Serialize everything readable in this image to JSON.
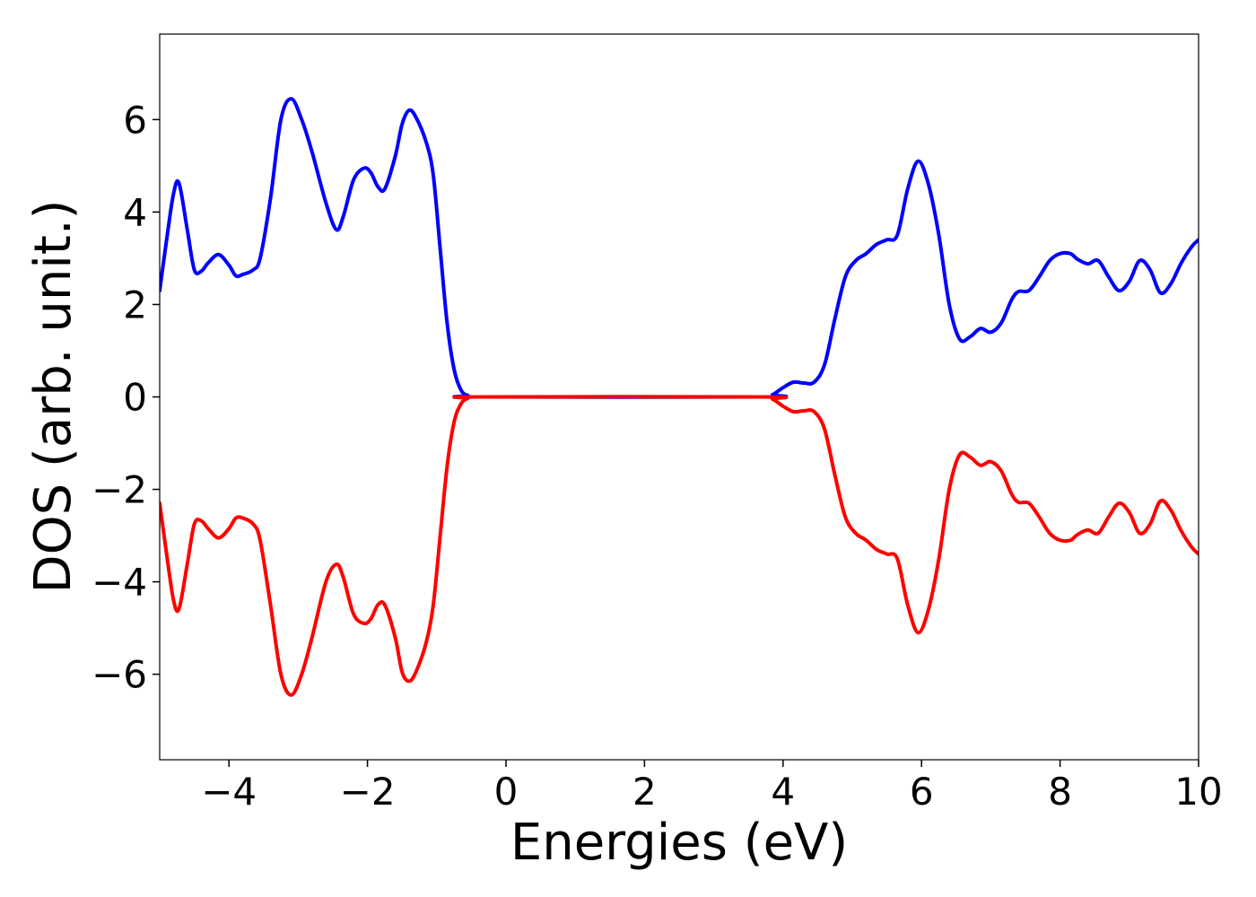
{
  "chart_data": {
    "type": "line",
    "title": "",
    "xlabel": "Energies (eV)",
    "ylabel": "DOS (arb. unit.)",
    "xlim": [
      -5,
      10
    ],
    "ylim": [
      -7.85,
      7.85
    ],
    "xticks": [
      -4,
      -2,
      0,
      2,
      4,
      6,
      8,
      10
    ],
    "xtick_labels": [
      "−4",
      "−2",
      "0",
      "2",
      "4",
      "6",
      "8",
      "10"
    ],
    "yticks": [
      -6,
      -4,
      -2,
      0,
      2,
      4,
      6
    ],
    "ytick_labels": [
      "−6",
      "−4",
      "−2",
      "0",
      "2",
      "4",
      "6"
    ],
    "grid": false,
    "legend": "none",
    "series": [
      {
        "color": "#0000ff",
        "points": [
          [
            -5.0,
            2.3
          ],
          [
            -4.9,
            3.4
          ],
          [
            -4.8,
            4.4
          ],
          [
            -4.72,
            4.62
          ],
          [
            -4.6,
            3.6
          ],
          [
            -4.5,
            2.75
          ],
          [
            -4.4,
            2.72
          ],
          [
            -4.3,
            2.9
          ],
          [
            -4.15,
            3.08
          ],
          [
            -4.0,
            2.85
          ],
          [
            -3.9,
            2.62
          ],
          [
            -3.8,
            2.65
          ],
          [
            -3.65,
            2.75
          ],
          [
            -3.55,
            3.0
          ],
          [
            -3.4,
            4.3
          ],
          [
            -3.25,
            6.0
          ],
          [
            -3.1,
            6.45
          ],
          [
            -2.95,
            6.0
          ],
          [
            -2.8,
            5.3
          ],
          [
            -2.6,
            4.2
          ],
          [
            -2.45,
            3.62
          ],
          [
            -2.35,
            3.9
          ],
          [
            -2.2,
            4.7
          ],
          [
            -2.05,
            4.95
          ],
          [
            -1.95,
            4.85
          ],
          [
            -1.85,
            4.55
          ],
          [
            -1.75,
            4.5
          ],
          [
            -1.6,
            5.2
          ],
          [
            -1.5,
            5.9
          ],
          [
            -1.4,
            6.2
          ],
          [
            -1.3,
            6.05
          ],
          [
            -1.15,
            5.5
          ],
          [
            -1.05,
            4.8
          ],
          [
            -0.95,
            3.2
          ],
          [
            -0.85,
            1.6
          ],
          [
            -0.75,
            0.6
          ],
          [
            -0.65,
            0.15
          ],
          [
            -0.55,
            0.03
          ],
          [
            -0.4,
            0.0
          ],
          [
            3.7,
            0.0
          ],
          [
            3.85,
            0.05
          ],
          [
            4.0,
            0.2
          ],
          [
            4.15,
            0.32
          ],
          [
            4.3,
            0.3
          ],
          [
            4.45,
            0.32
          ],
          [
            4.6,
            0.7
          ],
          [
            4.75,
            1.7
          ],
          [
            4.9,
            2.6
          ],
          [
            5.05,
            2.95
          ],
          [
            5.2,
            3.1
          ],
          [
            5.35,
            3.3
          ],
          [
            5.5,
            3.4
          ],
          [
            5.65,
            3.5
          ],
          [
            5.8,
            4.5
          ],
          [
            5.95,
            5.1
          ],
          [
            6.1,
            4.6
          ],
          [
            6.25,
            3.5
          ],
          [
            6.4,
            2.0
          ],
          [
            6.55,
            1.25
          ],
          [
            6.7,
            1.3
          ],
          [
            6.85,
            1.48
          ],
          [
            7.0,
            1.4
          ],
          [
            7.15,
            1.6
          ],
          [
            7.3,
            2.1
          ],
          [
            7.4,
            2.28
          ],
          [
            7.55,
            2.3
          ],
          [
            7.7,
            2.6
          ],
          [
            7.85,
            2.95
          ],
          [
            8.0,
            3.1
          ],
          [
            8.15,
            3.1
          ],
          [
            8.25,
            2.98
          ],
          [
            8.4,
            2.88
          ],
          [
            8.55,
            2.95
          ],
          [
            8.7,
            2.6
          ],
          [
            8.85,
            2.3
          ],
          [
            9.0,
            2.5
          ],
          [
            9.15,
            2.95
          ],
          [
            9.3,
            2.75
          ],
          [
            9.45,
            2.25
          ],
          [
            9.6,
            2.45
          ],
          [
            9.75,
            2.9
          ],
          [
            9.9,
            3.25
          ],
          [
            10.0,
            3.4
          ]
        ]
      },
      {
        "color": "#ff0000",
        "points": [
          [
            -5.0,
            -2.3
          ],
          [
            -4.9,
            -3.4
          ],
          [
            -4.8,
            -4.4
          ],
          [
            -4.72,
            -4.58
          ],
          [
            -4.6,
            -3.6
          ],
          [
            -4.5,
            -2.75
          ],
          [
            -4.4,
            -2.68
          ],
          [
            -4.3,
            -2.85
          ],
          [
            -4.15,
            -3.05
          ],
          [
            -4.0,
            -2.85
          ],
          [
            -3.9,
            -2.62
          ],
          [
            -3.8,
            -2.62
          ],
          [
            -3.65,
            -2.75
          ],
          [
            -3.55,
            -3.1
          ],
          [
            -3.4,
            -4.5
          ],
          [
            -3.25,
            -6.0
          ],
          [
            -3.1,
            -6.45
          ],
          [
            -2.95,
            -6.0
          ],
          [
            -2.8,
            -5.2
          ],
          [
            -2.6,
            -4.0
          ],
          [
            -2.45,
            -3.62
          ],
          [
            -2.35,
            -3.9
          ],
          [
            -2.2,
            -4.7
          ],
          [
            -2.05,
            -4.9
          ],
          [
            -1.95,
            -4.8
          ],
          [
            -1.85,
            -4.5
          ],
          [
            -1.75,
            -4.5
          ],
          [
            -1.6,
            -5.2
          ],
          [
            -1.5,
            -5.95
          ],
          [
            -1.4,
            -6.15
          ],
          [
            -1.3,
            -5.95
          ],
          [
            -1.15,
            -5.3
          ],
          [
            -1.05,
            -4.5
          ],
          [
            -0.95,
            -3.0
          ],
          [
            -0.85,
            -1.5
          ],
          [
            -0.75,
            -0.55
          ],
          [
            -0.65,
            -0.15
          ],
          [
            -0.55,
            -0.03
          ],
          [
            -0.4,
            0.0
          ],
          [
            3.7,
            0.0
          ],
          [
            3.85,
            -0.05
          ],
          [
            4.0,
            -0.2
          ],
          [
            4.15,
            -0.32
          ],
          [
            4.3,
            -0.3
          ],
          [
            4.45,
            -0.32
          ],
          [
            4.6,
            -0.7
          ],
          [
            4.75,
            -1.7
          ],
          [
            4.9,
            -2.6
          ],
          [
            5.05,
            -2.95
          ],
          [
            5.2,
            -3.1
          ],
          [
            5.35,
            -3.3
          ],
          [
            5.5,
            -3.4
          ],
          [
            5.65,
            -3.5
          ],
          [
            5.8,
            -4.5
          ],
          [
            5.95,
            -5.1
          ],
          [
            6.1,
            -4.6
          ],
          [
            6.25,
            -3.5
          ],
          [
            6.4,
            -2.0
          ],
          [
            6.55,
            -1.25
          ],
          [
            6.7,
            -1.3
          ],
          [
            6.85,
            -1.48
          ],
          [
            7.0,
            -1.4
          ],
          [
            7.15,
            -1.6
          ],
          [
            7.3,
            -2.1
          ],
          [
            7.4,
            -2.28
          ],
          [
            7.55,
            -2.3
          ],
          [
            7.7,
            -2.6
          ],
          [
            7.85,
            -2.95
          ],
          [
            8.0,
            -3.1
          ],
          [
            8.15,
            -3.1
          ],
          [
            8.25,
            -2.98
          ],
          [
            8.4,
            -2.88
          ],
          [
            8.55,
            -2.95
          ],
          [
            8.7,
            -2.6
          ],
          [
            8.85,
            -2.3
          ],
          [
            9.0,
            -2.5
          ],
          [
            9.15,
            -2.95
          ],
          [
            9.3,
            -2.75
          ],
          [
            9.45,
            -2.25
          ],
          [
            9.6,
            -2.45
          ],
          [
            9.75,
            -2.9
          ],
          [
            9.9,
            -3.25
          ],
          [
            10.0,
            -3.4
          ]
        ]
      }
    ]
  }
}
